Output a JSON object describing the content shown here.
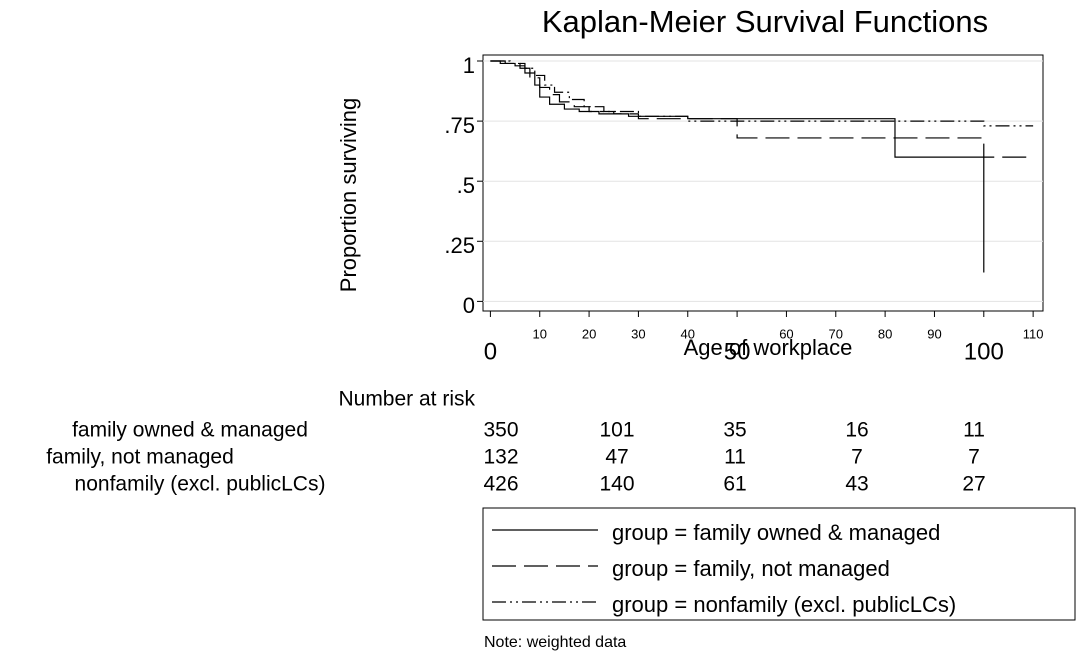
{
  "chart_data": {
    "type": "line",
    "step": true,
    "title": "Kaplan-Meier Survival Functions",
    "x_label": "Age of workplace",
    "y_label": "Proportion surviving",
    "xlim": [
      -1.5,
      112
    ],
    "ylim": [
      -0.04,
      1.025
    ],
    "xticks": [
      0,
      10,
      20,
      30,
      40,
      50,
      60,
      70,
      80,
      90,
      100,
      110
    ],
    "yticks": [
      1,
      {
        "value": 0.75,
        "label": ".75"
      },
      {
        "value": 0.5,
        "label": ".5"
      },
      {
        "value": 0.25,
        "label": ".25"
      },
      0
    ],
    "grid": true,
    "series": [
      {
        "name": "group = family owned & managed",
        "color": "#000000",
        "dash": "solid",
        "x": [
          0,
          2,
          5,
          7,
          9,
          10,
          12,
          15,
          18,
          22,
          28,
          40,
          82,
          100
        ],
        "values": [
          1,
          0.99,
          0.98,
          0.95,
          0.9,
          0.85,
          0.82,
          0.8,
          0.79,
          0.78,
          0.77,
          0.76,
          0.6,
          0.12
        ]
      },
      {
        "name": "group = family, not managed",
        "color": "#000000",
        "dash": "long",
        "x": [
          0,
          3,
          6,
          8,
          10,
          12,
          14,
          17,
          20,
          25,
          30,
          50,
          100,
          110
        ],
        "values": [
          1,
          0.99,
          0.97,
          0.93,
          0.89,
          0.86,
          0.83,
          0.81,
          0.79,
          0.78,
          0.76,
          0.68,
          0.6,
          0.6
        ]
      },
      {
        "name": "group = nonfamily (excl. publicLCs)",
        "color": "#000000",
        "dash": "dashdot",
        "x": [
          0,
          4,
          7,
          9,
          11,
          13,
          16,
          19,
          23,
          30,
          40,
          100,
          110
        ],
        "values": [
          1,
          0.99,
          0.97,
          0.94,
          0.9,
          0.87,
          0.84,
          0.81,
          0.79,
          0.77,
          0.75,
          0.73,
          0.73
        ]
      }
    ],
    "risk_table": {
      "title": "Number at risk",
      "rows": [
        {
          "label": "family owned & managed",
          "values": [
            350,
            101,
            35,
            16,
            11
          ]
        },
        {
          "label": "family, not managed",
          "values": [
            132,
            47,
            11,
            7,
            7
          ]
        },
        {
          "label": "nonfamily (excl. publicLCs)",
          "values": [
            426,
            140,
            61,
            43,
            27
          ]
        }
      ]
    },
    "note": "Note: weighted data"
  }
}
